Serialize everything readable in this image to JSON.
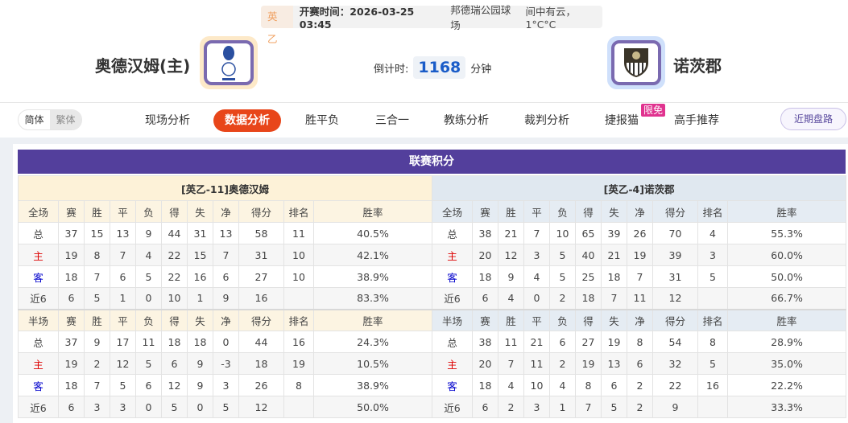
{
  "match": {
    "league": "英乙",
    "kickoff": "开赛时间：2026-03-25 03:45",
    "venue": "邦德瑞公园球场",
    "weather": "间中有云，1°C°C",
    "home": "奥德汉姆(主)",
    "away": "诺茨郡",
    "countdown_label": "倒计时:",
    "countdown_value": "1168",
    "countdown_unit": "分钟"
  },
  "lang": {
    "simplified": "简体",
    "traditional": "繁体"
  },
  "tabs": [
    "现场分析",
    "数据分析",
    "胜平负",
    "三合一",
    "教练分析",
    "裁判分析",
    "捷报猫",
    "高手推荐"
  ],
  "active_tab": "数据分析",
  "free_badge": "限免",
  "recent_button": "近期盘路",
  "section_title": "联赛积分",
  "columns": [
    "赛",
    "胜",
    "平",
    "负",
    "得",
    "失",
    "净",
    "得分",
    "排名",
    "胜率"
  ],
  "full_label": "全场",
  "half_label": "半场",
  "home_table": {
    "title": "[英乙-11]奥德汉姆",
    "full": [
      [
        "总",
        "37",
        "15",
        "13",
        "9",
        "44",
        "31",
        "13",
        "58",
        "11",
        "40.5%"
      ],
      [
        "主",
        "19",
        "8",
        "7",
        "4",
        "22",
        "15",
        "7",
        "31",
        "10",
        "42.1%"
      ],
      [
        "客",
        "18",
        "7",
        "6",
        "5",
        "22",
        "16",
        "6",
        "27",
        "10",
        "38.9%"
      ],
      [
        "近6",
        "6",
        "5",
        "1",
        "0",
        "10",
        "1",
        "9",
        "16",
        "",
        "83.3%"
      ]
    ],
    "half": [
      [
        "总",
        "37",
        "9",
        "17",
        "11",
        "18",
        "18",
        "0",
        "44",
        "16",
        "24.3%"
      ],
      [
        "主",
        "19",
        "2",
        "12",
        "5",
        "6",
        "9",
        "-3",
        "18",
        "19",
        "10.5%"
      ],
      [
        "客",
        "18",
        "7",
        "5",
        "6",
        "12",
        "9",
        "3",
        "26",
        "8",
        "38.9%"
      ],
      [
        "近6",
        "6",
        "3",
        "3",
        "0",
        "5",
        "0",
        "5",
        "12",
        "",
        "50.0%"
      ]
    ]
  },
  "away_table": {
    "title": "[英乙-4]诺茨郡",
    "full": [
      [
        "总",
        "38",
        "21",
        "7",
        "10",
        "65",
        "39",
        "26",
        "70",
        "4",
        "55.3%"
      ],
      [
        "主",
        "20",
        "12",
        "3",
        "5",
        "40",
        "21",
        "19",
        "39",
        "3",
        "60.0%"
      ],
      [
        "客",
        "18",
        "9",
        "4",
        "5",
        "25",
        "18",
        "7",
        "31",
        "5",
        "50.0%"
      ],
      [
        "近6",
        "6",
        "4",
        "0",
        "2",
        "18",
        "7",
        "11",
        "12",
        "",
        "66.7%"
      ]
    ],
    "half": [
      [
        "总",
        "38",
        "11",
        "21",
        "6",
        "27",
        "19",
        "8",
        "54",
        "8",
        "28.9%"
      ],
      [
        "主",
        "20",
        "7",
        "11",
        "2",
        "19",
        "13",
        "6",
        "32",
        "5",
        "35.0%"
      ],
      [
        "客",
        "18",
        "4",
        "10",
        "4",
        "8",
        "6",
        "2",
        "22",
        "16",
        "22.2%"
      ],
      [
        "近6",
        "6",
        "2",
        "3",
        "1",
        "7",
        "5",
        "2",
        "9",
        "",
        "33.3%"
      ]
    ]
  },
  "colors": {
    "accent": "#e8461a",
    "purple": "#533f9c",
    "home_row": "#dd0000",
    "away_row": "#0000cc"
  }
}
